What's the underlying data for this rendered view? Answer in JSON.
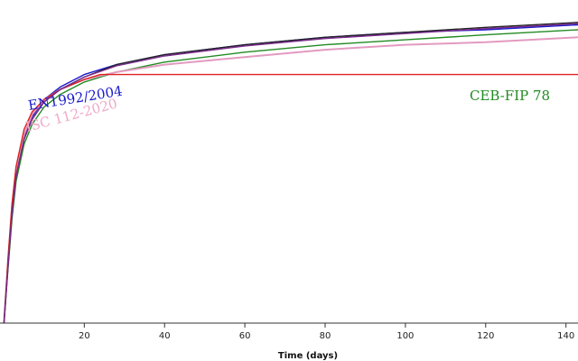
{
  "chart_data": {
    "type": "line",
    "title": "",
    "xlabel": "Time (days)",
    "ylabel": "",
    "xlim": [
      -1,
      143
    ],
    "ylim": [
      0,
      1.3
    ],
    "grid": false,
    "x_ticks": [
      20,
      40,
      60,
      80,
      100,
      120,
      140
    ],
    "x_tick_labels": [
      "20",
      "40",
      "60",
      "80",
      "100",
      "120",
      "140"
    ],
    "series": [
      {
        "name": "EN1992/2004",
        "color": "#1a1acc",
        "x": [
          0,
          1,
          2,
          3,
          5,
          7,
          10,
          14,
          20,
          28,
          40,
          60,
          80,
          100,
          120,
          143
        ],
        "y": [
          0.0,
          0.24,
          0.45,
          0.6,
          0.75,
          0.83,
          0.9,
          0.95,
          1.0,
          1.04,
          1.08,
          1.12,
          1.15,
          1.17,
          1.18,
          1.2
        ]
      },
      {
        "name": "CEB-FIP 78",
        "color": "#228b22",
        "x": [
          0,
          1,
          2,
          3,
          5,
          7,
          10,
          14,
          20,
          28,
          40,
          60,
          80,
          100,
          120,
          143
        ],
        "y": [
          0.0,
          0.22,
          0.42,
          0.57,
          0.72,
          0.8,
          0.87,
          0.92,
          0.97,
          1.01,
          1.05,
          1.09,
          1.12,
          1.14,
          1.16,
          1.18
        ]
      },
      {
        "name": "ISC 112-2020",
        "color": "#e39ac0",
        "x": [
          0,
          1,
          2,
          3,
          5,
          7,
          10,
          14,
          20,
          28,
          40,
          60,
          80,
          100,
          120,
          143
        ],
        "y": [
          0.0,
          0.25,
          0.47,
          0.62,
          0.76,
          0.84,
          0.9,
          0.94,
          0.98,
          1.01,
          1.04,
          1.07,
          1.1,
          1.12,
          1.13,
          1.15
        ]
      },
      {
        "name": "",
        "color": "#dd2222",
        "x": [
          0,
          1,
          2,
          3,
          5,
          7,
          10,
          14,
          20,
          24,
          28,
          40,
          60,
          80,
          100,
          120,
          143
        ],
        "y": [
          0.0,
          0.26,
          0.48,
          0.63,
          0.78,
          0.85,
          0.9,
          0.94,
          0.98,
          1.0,
          1.0,
          1.0,
          1.0,
          1.0,
          1.0,
          1.0,
          1.0
        ]
      },
      {
        "name": "",
        "color": "#222222",
        "x": [
          0,
          1,
          2,
          3,
          5,
          7,
          10,
          14,
          20,
          28,
          40,
          60,
          80,
          100,
          120,
          143
        ],
        "y": [
          0.0,
          0.23,
          0.44,
          0.59,
          0.74,
          0.82,
          0.89,
          0.94,
          0.99,
          1.04,
          1.08,
          1.12,
          1.15,
          1.17,
          1.19,
          1.21
        ]
      },
      {
        "name": "",
        "color": "#7a2a8a",
        "x": [
          0,
          1,
          2,
          3,
          5,
          7,
          10,
          14,
          20,
          28,
          40,
          60,
          80,
          100,
          120,
          143
        ],
        "y": [
          0.0,
          0.23,
          0.44,
          0.59,
          0.74,
          0.82,
          0.89,
          0.94,
          0.99,
          1.035,
          1.075,
          1.115,
          1.145,
          1.165,
          1.185,
          1.205
        ]
      }
    ],
    "annotations": [
      {
        "text": "EN1992/2004",
        "color": "#1a1acc"
      },
      {
        "text": "ISC 112-2020",
        "color": "#f0a8c8"
      },
      {
        "text": "CEB-FIP 78",
        "color": "#228b22"
      }
    ]
  }
}
